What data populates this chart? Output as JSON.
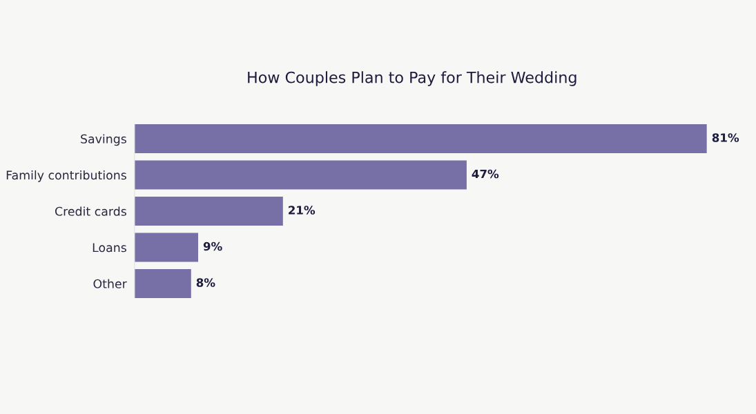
{
  "chart_data": {
    "type": "bar",
    "orientation": "horizontal",
    "title": "How Couples Plan to Pay for Their Wedding",
    "categories": [
      "Savings",
      "Family contributions",
      "Credit cards",
      "Loans",
      "Other"
    ],
    "values": [
      81,
      47,
      21,
      9,
      8
    ],
    "color": "#7670a6",
    "value_labels": [
      "81%",
      "47%",
      "21%",
      "9%",
      "8%"
    ],
    "grid": false,
    "legend": false
  }
}
